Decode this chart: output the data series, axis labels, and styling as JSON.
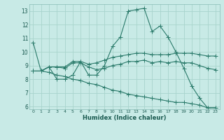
{
  "xlabel": "Humidex (Indice chaleur)",
  "background_color": "#c8eae6",
  "grid_color": "#a8d4cc",
  "line_color": "#2a7a6a",
  "xlim": [
    -0.5,
    23.5
  ],
  "ylim": [
    5.8,
    13.5
  ],
  "yticks": [
    6,
    7,
    8,
    9,
    10,
    11,
    12,
    13
  ],
  "xticks": [
    0,
    1,
    2,
    3,
    4,
    5,
    6,
    7,
    8,
    9,
    10,
    11,
    12,
    13,
    14,
    15,
    16,
    17,
    18,
    19,
    20,
    21,
    22,
    23
  ],
  "line1_x": [
    0,
    1,
    2,
    3,
    4,
    5,
    6,
    7,
    8,
    9,
    10,
    11,
    12,
    13,
    14,
    15,
    16,
    17,
    18,
    19,
    20,
    21,
    22,
    23
  ],
  "line1_y": [
    10.7,
    8.6,
    8.9,
    8.0,
    8.0,
    8.3,
    9.3,
    8.3,
    8.3,
    9.0,
    10.4,
    11.1,
    13.0,
    13.1,
    13.2,
    11.5,
    11.9,
    11.1,
    10.0,
    8.8,
    7.5,
    6.6,
    5.9,
    5.9
  ],
  "line2_x": [
    0,
    1,
    2,
    3,
    4,
    5,
    6,
    7,
    8,
    9,
    10,
    11,
    12,
    13,
    14,
    15,
    16,
    17,
    18,
    19,
    20,
    21,
    22,
    23
  ],
  "line2_y": [
    8.6,
    8.6,
    8.9,
    8.9,
    8.9,
    9.3,
    9.3,
    9.1,
    9.2,
    9.4,
    9.6,
    9.7,
    9.8,
    9.9,
    9.9,
    9.8,
    9.8,
    9.8,
    9.9,
    9.9,
    9.9,
    9.8,
    9.7,
    9.7
  ],
  "line3_x": [
    0,
    1,
    2,
    3,
    4,
    5,
    6,
    7,
    8,
    9,
    10,
    11,
    12,
    13,
    14,
    15,
    16,
    17,
    18,
    19,
    20,
    21,
    22,
    23
  ],
  "line3_y": [
    8.6,
    8.6,
    8.9,
    8.9,
    8.8,
    9.2,
    9.2,
    8.9,
    8.7,
    8.8,
    9.0,
    9.1,
    9.3,
    9.3,
    9.4,
    9.2,
    9.3,
    9.2,
    9.3,
    9.2,
    9.2,
    9.0,
    8.8,
    8.7
  ],
  "line4_x": [
    0,
    1,
    2,
    3,
    4,
    5,
    6,
    7,
    8,
    9,
    10,
    11,
    12,
    13,
    14,
    15,
    16,
    17,
    18,
    19,
    20,
    21,
    22,
    23
  ],
  "line4_y": [
    8.6,
    8.6,
    8.5,
    8.3,
    8.2,
    8.0,
    7.9,
    7.7,
    7.6,
    7.4,
    7.2,
    7.1,
    6.9,
    6.8,
    6.7,
    6.6,
    6.5,
    6.4,
    6.3,
    6.3,
    6.2,
    6.1,
    5.9,
    5.9
  ]
}
